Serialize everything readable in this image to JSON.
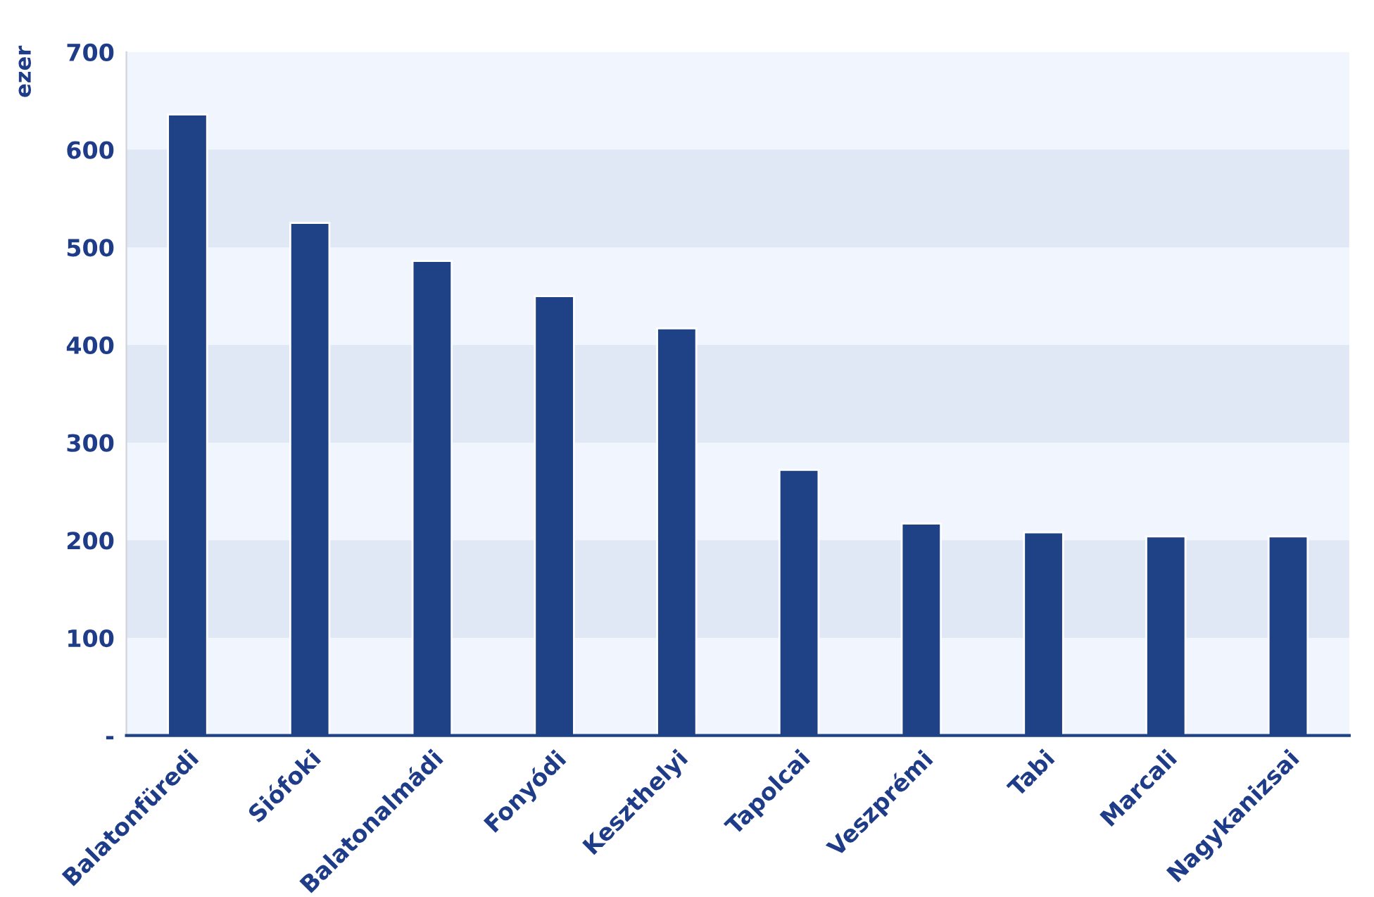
{
  "chart_data": {
    "type": "bar",
    "ylabel": "ezer",
    "categories": [
      "Balatonfüredi",
      "Siófoki",
      "Balatonalmádi",
      "Fonyódi",
      "Keszthelyi",
      "Tapolcai",
      "Veszprémi",
      "Tabi",
      "Marcali",
      "Nagykanizsai"
    ],
    "series": [
      {
        "color": "#1f4287",
        "values": [
          636,
          525,
          486,
          450,
          417,
          272,
          217,
          208,
          204,
          204
        ]
      }
    ],
    "ylim": [
      0,
      700
    ],
    "yticks": [
      {
        "value": 0,
        "label": "-"
      },
      100,
      200,
      300,
      400,
      500,
      600,
      700
    ],
    "bands": [
      {
        "axis": "y",
        "from": 100,
        "to": 200,
        "color": "#e0e7f5"
      },
      {
        "axis": "y",
        "from": 300,
        "to": 400,
        "color": "#e0e7f5"
      },
      {
        "axis": "y",
        "from": 500,
        "to": 600,
        "color": "#e0e7f5"
      }
    ],
    "grid": false,
    "legend": false
  }
}
